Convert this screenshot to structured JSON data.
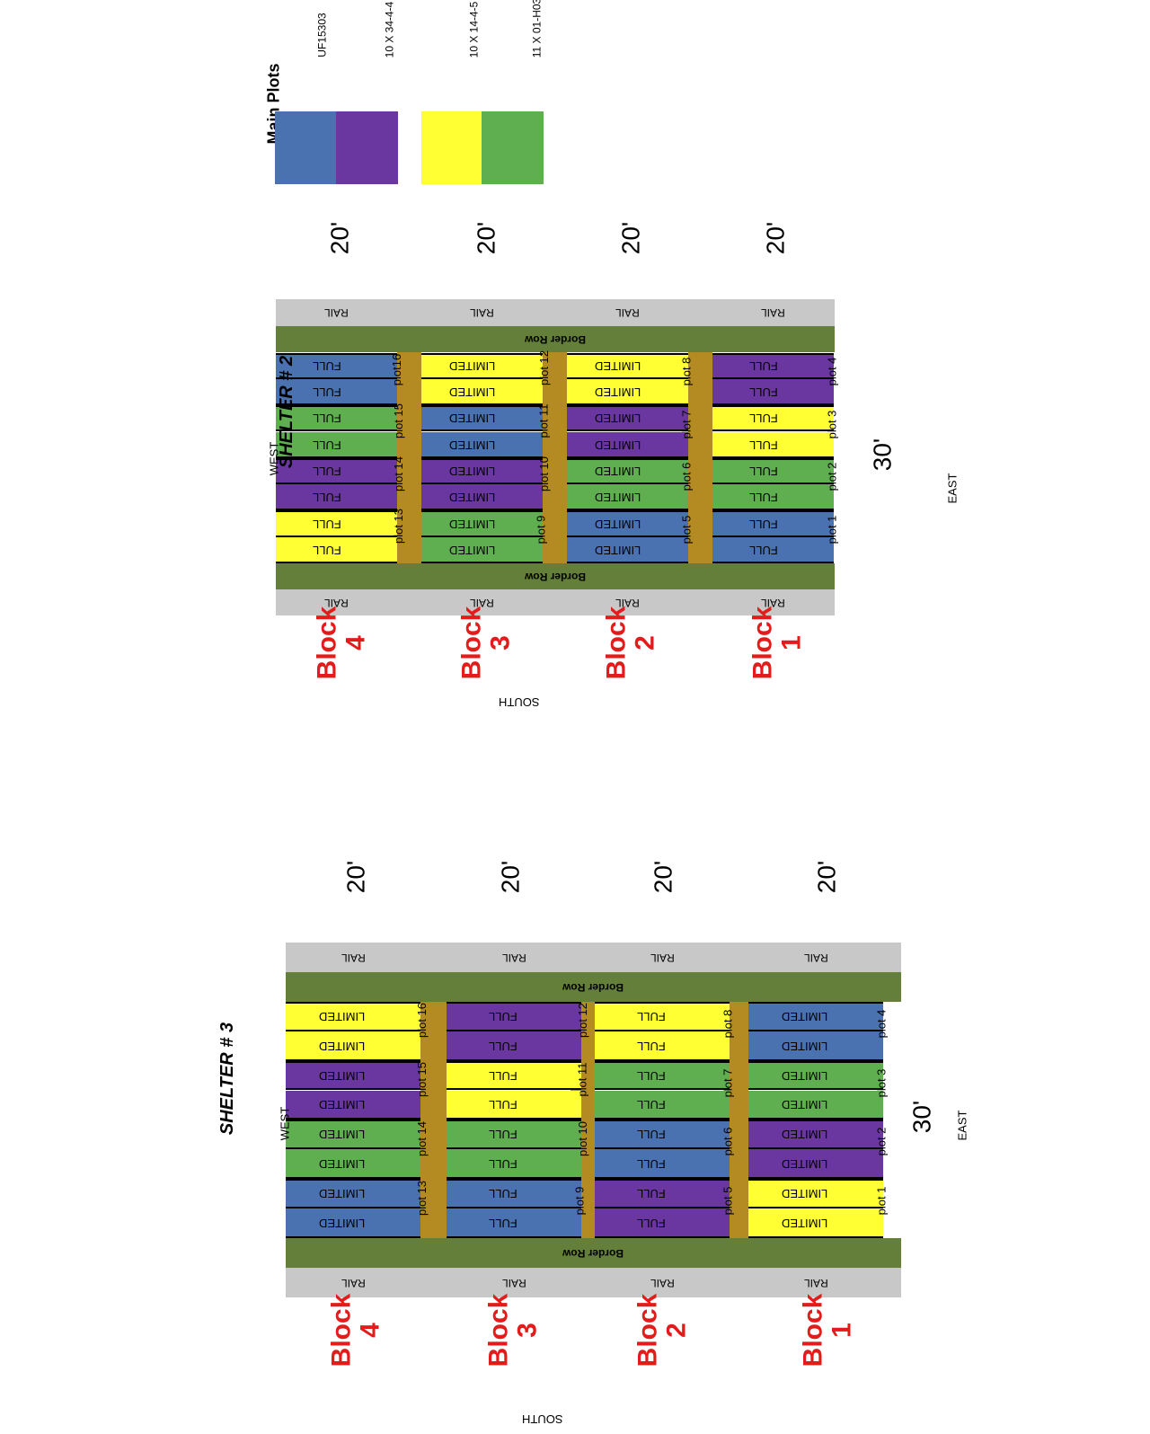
{
  "colors": {
    "UF15303": "#4a72b0",
    "10 X 34-4-4": "#6a37a0",
    "10 X 14-4-5": "#ffff33",
    "11 X 01-H03": "#5faf50",
    "rail": "#c8c8c8",
    "border_row": "#637f39",
    "alley": "#b38b22",
    "block_label": "#e31b1b"
  },
  "legend": {
    "title": "Main Plots",
    "entries": [
      "UF15303",
      "10 X 34-4-4",
      "10 X 14-4-5",
      "11 X 01-H03"
    ]
  },
  "labels": {
    "rail": "RAIL",
    "border_row": "Border Row",
    "block_word": "Block",
    "south": "SOUTH",
    "west": "WEST",
    "east": "EAST",
    "width_dim": "30'",
    "block_dim": "20'"
  },
  "shelters": [
    {
      "title": "SHELTER # 2",
      "blocks": [
        {
          "number": "4",
          "plots": [
            {
              "label": "plot 13",
              "genotype": "10 X 14-4-5",
              "treatment": "FULL"
            },
            {
              "label": "plot 14",
              "genotype": "10 X 34-4-4",
              "treatment": "FULL"
            },
            {
              "label": "plot 15",
              "genotype": "11 X 01-H03",
              "treatment": "FULL"
            },
            {
              "label": "plot16",
              "genotype": "UF15303",
              "treatment": "FULL"
            }
          ]
        },
        {
          "number": "3",
          "plots": [
            {
              "label": "plot 9",
              "genotype": "11 X 01-H03",
              "treatment": "LIMITED"
            },
            {
              "label": "plot 10",
              "genotype": "10 X 34-4-4",
              "treatment": "LIMITED"
            },
            {
              "label": "plot 11",
              "genotype": "UF15303",
              "treatment": "LIMITED"
            },
            {
              "label": "plot 12",
              "genotype": "10 X 14-4-5",
              "treatment": "LIMITED"
            }
          ]
        },
        {
          "number": "2",
          "plots": [
            {
              "label": "plot 5",
              "genotype": "UF15303",
              "treatment": "LIMITED"
            },
            {
              "label": "plot 6",
              "genotype": "11 X 01-H03",
              "treatment": "LIMITED"
            },
            {
              "label": "plot 7",
              "genotype": "10 X 34-4-4",
              "treatment": "LIMITED"
            },
            {
              "label": "plot 8",
              "genotype": "10 X 14-4-5",
              "treatment": "LIMITED"
            }
          ]
        },
        {
          "number": "1",
          "plots": [
            {
              "label": "plot 1",
              "genotype": "UF15303",
              "treatment": "FULL"
            },
            {
              "label": "plot 2",
              "genotype": "11 X 01-H03",
              "treatment": "FULL"
            },
            {
              "label": "plot 3",
              "genotype": "10 X 14-4-5",
              "treatment": "FULL"
            },
            {
              "label": "plot 4",
              "genotype": "10 X 34-4-4",
              "treatment": "FULL"
            }
          ]
        }
      ]
    },
    {
      "title": "SHELTER # 3",
      "blocks": [
        {
          "number": "4",
          "plots": [
            {
              "label": "plot 13",
              "genotype": "UF15303",
              "treatment": "LIMITED"
            },
            {
              "label": "plot 14",
              "genotype": "11 X 01-H03",
              "treatment": "LIMITED"
            },
            {
              "label": "plot 15",
              "genotype": "10 X 34-4-4",
              "treatment": "LIMITED"
            },
            {
              "label": "plot 16",
              "genotype": "10 X 14-4-5",
              "treatment": "LIMITED"
            }
          ]
        },
        {
          "number": "3",
          "plots": [
            {
              "label": "plot 9",
              "genotype": "UF15303",
              "treatment": "FULL"
            },
            {
              "label": "plot 10",
              "genotype": "11 X 01-H03",
              "treatment": "FULL"
            },
            {
              "label": "plot 11",
              "genotype": "10 X 14-4-5",
              "treatment": "FULL"
            },
            {
              "label": "plot 12",
              "genotype": "10 X 34-4-4",
              "treatment": "FULL"
            }
          ]
        },
        {
          "number": "2",
          "plots": [
            {
              "label": "plot 5",
              "genotype": "10 X 34-4-4",
              "treatment": "FULL"
            },
            {
              "label": "plot 6",
              "genotype": "UF15303",
              "treatment": "FULL"
            },
            {
              "label": "plot 7",
              "genotype": "11 X 01-H03",
              "treatment": "FULL"
            },
            {
              "label": "plot 8",
              "genotype": "10 X 14-4-5",
              "treatment": "FULL"
            }
          ]
        },
        {
          "number": "1",
          "plots": [
            {
              "label": "plot 1",
              "genotype": "10 X 14-4-5",
              "treatment": "LIMITED"
            },
            {
              "label": "plot 2",
              "genotype": "10 X 34-4-4",
              "treatment": "LIMITED"
            },
            {
              "label": "plot 3",
              "genotype": "11 X 01-H03",
              "treatment": "LIMITED"
            },
            {
              "label": "plot 4",
              "genotype": "UF15303",
              "treatment": "LIMITED"
            }
          ]
        }
      ]
    }
  ]
}
